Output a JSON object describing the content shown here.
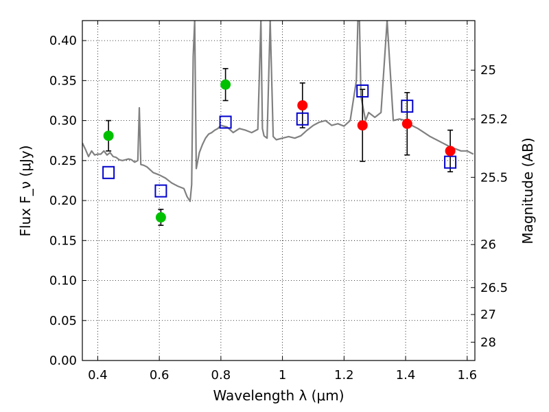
{
  "chart_data": {
    "type": "scatter",
    "xlabel": "Wavelength λ (μm)",
    "ylabel": "Flux F_ν (μJy)",
    "y2label": "Magnitude (AB)",
    "xlim": [
      0.35,
      1.625
    ],
    "ylim": [
      0.0,
      0.425
    ],
    "grid": true,
    "x_ticks": [
      0.4,
      0.6,
      0.8,
      1.0,
      1.2,
      1.4,
      1.6
    ],
    "x_tick_labels": [
      "0.4",
      "0.6",
      "0.8",
      "1",
      "1.2",
      "1.4",
      "1.6"
    ],
    "y_ticks": [
      0.0,
      0.05,
      0.1,
      0.15,
      0.2,
      0.25,
      0.3,
      0.35,
      0.4
    ],
    "y_tick_labels": [
      "0.00",
      "0.05",
      "0.10",
      "0.15",
      "0.20",
      "0.25",
      "0.30",
      "0.35",
      "0.40"
    ],
    "mag_ticks": [
      {
        "label": "25",
        "flux": 0.363
      },
      {
        "label": "25.2",
        "flux": 0.302
      },
      {
        "label": "25.5",
        "flux": 0.229
      },
      {
        "label": "26",
        "flux": 0.145
      },
      {
        "label": "26.5",
        "flux": 0.0912
      },
      {
        "label": "27",
        "flux": 0.0575
      },
      {
        "label": "28",
        "flux": 0.0229
      }
    ],
    "series": [
      {
        "marker": "circle",
        "color": "#00c000",
        "x": [
          0.435,
          0.605,
          0.815
        ],
        "y": [
          0.281,
          0.179,
          0.345
        ],
        "yerr": [
          0.019,
          0.01,
          0.02
        ]
      },
      {
        "marker": "circle",
        "color": "#ff0000",
        "x": [
          1.065,
          1.26,
          1.405,
          1.545
        ],
        "y": [
          0.319,
          0.294,
          0.296,
          0.262
        ],
        "yerr": [
          0.028,
          0.045,
          0.039,
          0.026
        ]
      },
      {
        "marker": "open-square",
        "color": "#0000cc",
        "x": [
          0.435,
          0.605,
          0.815,
          1.065,
          1.26,
          1.405,
          1.545
        ],
        "y": [
          0.235,
          0.212,
          0.298,
          0.302,
          0.337,
          0.318,
          0.248
        ]
      },
      {
        "marker": "line",
        "color": "#808080",
        "x": [
          0.35,
          0.36,
          0.37,
          0.38,
          0.39,
          0.4,
          0.41,
          0.42,
          0.43,
          0.44,
          0.45,
          0.46,
          0.47,
          0.48,
          0.49,
          0.5,
          0.51,
          0.52,
          0.53,
          0.535,
          0.54,
          0.55,
          0.56,
          0.58,
          0.6,
          0.62,
          0.64,
          0.66,
          0.68,
          0.69,
          0.7,
          0.705,
          0.71,
          0.715,
          0.72,
          0.73,
          0.74,
          0.75,
          0.76,
          0.77,
          0.78,
          0.79,
          0.8,
          0.82,
          0.84,
          0.86,
          0.88,
          0.9,
          0.92,
          0.93,
          0.935,
          0.94,
          0.95,
          0.96,
          0.97,
          0.98,
          1.0,
          1.02,
          1.04,
          1.06,
          1.08,
          1.1,
          1.12,
          1.14,
          1.16,
          1.18,
          1.2,
          1.22,
          1.24,
          1.245,
          1.25,
          1.255,
          1.27,
          1.28,
          1.3,
          1.32,
          1.34,
          1.36,
          1.38,
          1.4,
          1.42,
          1.44,
          1.46,
          1.48,
          1.5,
          1.52,
          1.54,
          1.56,
          1.58,
          1.6,
          1.62
        ],
        "y": [
          0.272,
          0.264,
          0.255,
          0.262,
          0.257,
          0.258,
          0.258,
          0.262,
          0.257,
          0.26,
          0.255,
          0.254,
          0.251,
          0.25,
          0.251,
          0.252,
          0.251,
          0.248,
          0.25,
          0.316,
          0.245,
          0.244,
          0.242,
          0.235,
          0.232,
          0.228,
          0.222,
          0.218,
          0.215,
          0.205,
          0.199,
          0.22,
          0.38,
          0.425,
          0.24,
          0.26,
          0.27,
          0.278,
          0.283,
          0.285,
          0.288,
          0.29,
          0.294,
          0.292,
          0.285,
          0.29,
          0.288,
          0.285,
          0.289,
          0.425,
          0.29,
          0.281,
          0.278,
          0.425,
          0.28,
          0.276,
          0.278,
          0.28,
          0.278,
          0.281,
          0.288,
          0.294,
          0.298,
          0.3,
          0.294,
          0.296,
          0.293,
          0.3,
          0.35,
          0.425,
          0.425,
          0.33,
          0.3,
          0.31,
          0.304,
          0.31,
          0.425,
          0.3,
          0.302,
          0.3,
          0.294,
          0.29,
          0.285,
          0.28,
          0.276,
          0.272,
          0.268,
          0.265,
          0.262,
          0.262,
          0.258
        ]
      }
    ]
  }
}
